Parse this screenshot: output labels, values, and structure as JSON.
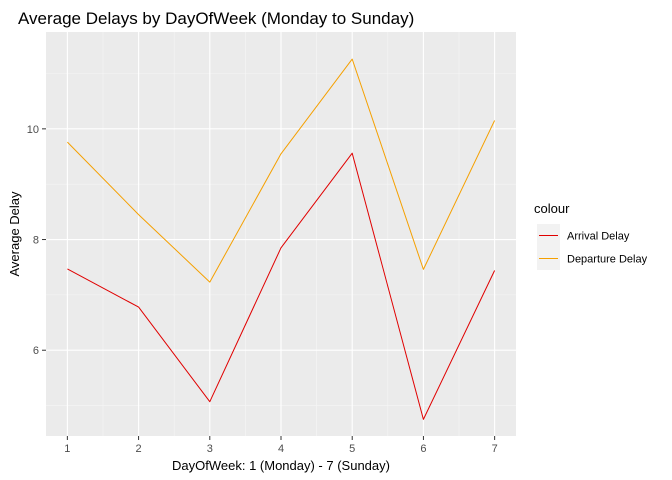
{
  "chart_data": {
    "type": "line",
    "title": "Average Delays by DayOfWeek (Monday to Sunday)",
    "xlabel": "DayOfWeek: 1 (Monday) - 7 (Sunday)",
    "ylabel": "Average Delay",
    "x": [
      1,
      2,
      3,
      4,
      5,
      6,
      7
    ],
    "xlim": [
      0.7,
      7.3
    ],
    "ylim": [
      4.45,
      11.75
    ],
    "x_ticks": [
      1,
      2,
      3,
      4,
      5,
      6,
      7
    ],
    "y_ticks": [
      6,
      8,
      10
    ],
    "grid": true,
    "legend": {
      "title": "colour",
      "placement": "right"
    },
    "series": [
      {
        "name": "Arrival Delay",
        "color": "#e00000",
        "values": [
          7.47,
          6.78,
          5.07,
          7.85,
          9.56,
          4.75,
          7.44
        ]
      },
      {
        "name": "Departure Delay",
        "color": "#f5a000",
        "values": [
          9.76,
          8.45,
          7.23,
          9.55,
          11.26,
          7.46,
          10.15
        ]
      }
    ]
  }
}
